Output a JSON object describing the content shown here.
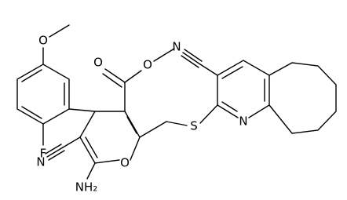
{
  "atoms": {
    "methoxy_o": "O",
    "fluorine": "F",
    "nitrile_n_left": "N",
    "amino": "NH₂",
    "ring_o": "O",
    "carbonyl_o": "O",
    "ester_o": "O",
    "sulfur": "S",
    "nitrile_n_right": "N",
    "pyridine_n": "N"
  }
}
